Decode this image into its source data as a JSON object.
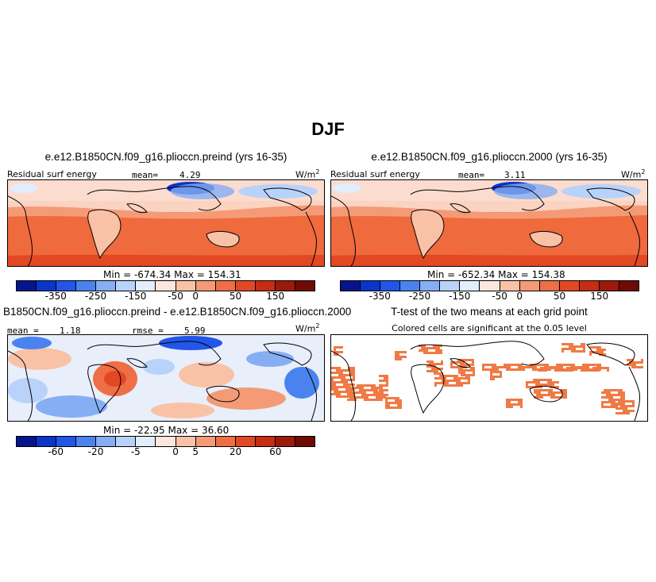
{
  "title": "DJF",
  "panels": [
    {
      "title": "e.e12.B1850CN.f09_g16.plioccn.preind (yrs 16-35)",
      "variable": "Residual surf energy",
      "mean_label": "mean=",
      "mean_value": "4.29",
      "units_base": "W/m",
      "units_exp": "2",
      "minmax": "Min = -674.34  Max = 154.31"
    },
    {
      "title": "e.e12.B1850CN.f09_g16.plioccn.2000 (yrs 16-35)",
      "variable": "Residual surf energy",
      "mean_label": "mean=",
      "mean_value": "3.11",
      "units_base": "W/m",
      "units_exp": "2",
      "minmax": "Min = -652.34  Max = 154.38"
    },
    {
      "title": "B1850CN.f09_g16.plioccn.preind - e.e12.B1850CN.f09_g16.plioccn.2000",
      "mean_label": "mean =",
      "mean_value": "1.18",
      "rmse_label": "rmse =",
      "rmse_value": "5.99",
      "units_base": "W/m",
      "units_exp": "2",
      "minmax": "Min = -22.95  Max = 36.60"
    },
    {
      "title": "T-test of the two means at each grid point",
      "subtitle": "Colored cells are significant at the 0.05 level"
    }
  ],
  "colorbar_main": {
    "colors": [
      "#04158d",
      "#0a35c9",
      "#2156e8",
      "#4a83f0",
      "#86aef5",
      "#b8d2fa",
      "#e2edfd",
      "#fde6dc",
      "#f9c2a7",
      "#f59a76",
      "#ef6e46",
      "#e24823",
      "#c62d13",
      "#9b1a0a",
      "#700a04"
    ],
    "ticks": [
      "-350",
      "-250",
      "-150",
      "-50",
      "0",
      "50",
      "150"
    ]
  },
  "colorbar_diff": {
    "colors": [
      "#04158d",
      "#0a35c9",
      "#2156e8",
      "#4a83f0",
      "#86aef5",
      "#b8d2fa",
      "#e2edfd",
      "#fde6dc",
      "#f9c2a7",
      "#f59a76",
      "#ef6e46",
      "#e24823",
      "#c62d13",
      "#9b1a0a",
      "#700a04"
    ],
    "ticks": [
      "-60",
      "-20",
      "-5",
      "0",
      "5",
      "20",
      "60"
    ]
  },
  "ttest_color": "#f07a45"
}
